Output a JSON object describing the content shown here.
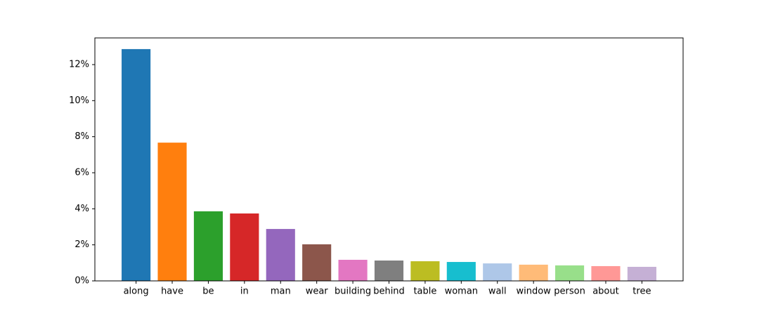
{
  "chart_data": {
    "type": "bar",
    "categories": [
      "along",
      "have",
      "be",
      "in",
      "man",
      "wear",
      "building",
      "behind",
      "table",
      "woman",
      "wall",
      "window",
      "person",
      "about",
      "tree"
    ],
    "values": [
      12.86,
      7.67,
      3.86,
      3.74,
      2.88,
      2.03,
      1.17,
      1.13,
      1.09,
      1.05,
      0.97,
      0.9,
      0.86,
      0.82,
      0.78
    ],
    "colors": [
      "#1f77b4",
      "#ff7f0e",
      "#2ca02c",
      "#d62728",
      "#9467bd",
      "#8c564b",
      "#e377c2",
      "#7f7f7f",
      "#bcbd22",
      "#17becf",
      "#aec7e8",
      "#ffbb78",
      "#98df8a",
      "#ff9896",
      "#c5b0d5"
    ],
    "ylim": [
      0,
      13.48
    ],
    "yticks": [
      {
        "value": 0,
        "label": "0%"
      },
      {
        "value": 2,
        "label": "2%"
      },
      {
        "value": 4,
        "label": "4%"
      },
      {
        "value": 6,
        "label": "6%"
      },
      {
        "value": 8,
        "label": "8%"
      },
      {
        "value": 10,
        "label": "10%"
      },
      {
        "value": 12,
        "label": "12%"
      }
    ],
    "grid": false
  }
}
